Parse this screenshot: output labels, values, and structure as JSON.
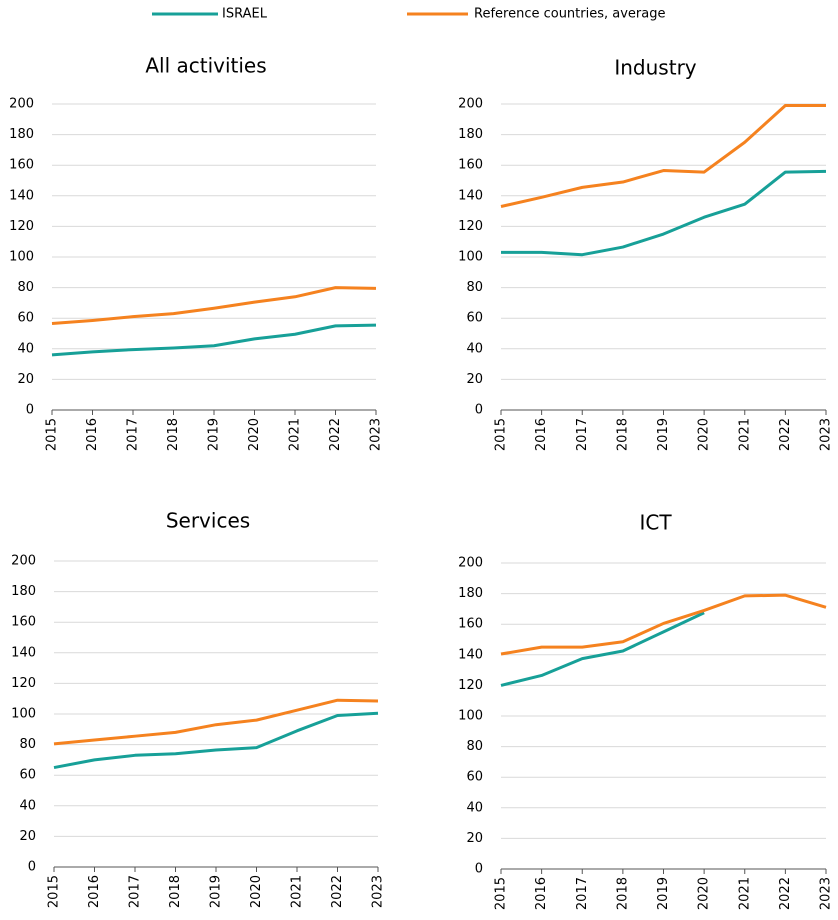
{
  "chart_data": [
    {
      "type": "line",
      "title": "All activities",
      "categories": [
        "2015",
        "2016",
        "2017",
        "2018",
        "2019",
        "2020",
        "2021",
        "2022",
        "2023"
      ],
      "series": [
        {
          "name": "ISRAEL",
          "color": "#17a098",
          "values": [
            36,
            38,
            39.5,
            40.5,
            42,
            46.5,
            49.5,
            55,
            55.5
          ]
        },
        {
          "name": "Reference countries, average",
          "color": "#f5821f",
          "values": [
            56.5,
            58.5,
            61,
            63,
            66.5,
            70.5,
            74,
            80,
            79.5
          ]
        }
      ],
      "ylim": [
        0,
        200
      ],
      "yticks": [
        0,
        20,
        40,
        60,
        80,
        100,
        120,
        140,
        160,
        180,
        200
      ],
      "grid": true
    },
    {
      "type": "line",
      "title": "Industry",
      "categories": [
        "2015",
        "2016",
        "2017",
        "2018",
        "2019",
        "2020",
        "2021",
        "2022",
        "2023"
      ],
      "series": [
        {
          "name": "ISRAEL",
          "color": "#17a098",
          "values": [
            103,
            103,
            101.5,
            106.5,
            115,
            126,
            134.5,
            155.5,
            156
          ]
        },
        {
          "name": "Reference countries, average",
          "color": "#f5821f",
          "values": [
            133,
            139,
            145.5,
            149,
            156.5,
            155.5,
            175,
            199,
            199
          ]
        }
      ],
      "ylim": [
        0,
        200
      ],
      "yticks": [
        0,
        20,
        40,
        60,
        80,
        100,
        120,
        140,
        160,
        180,
        200
      ],
      "grid": true
    },
    {
      "type": "line",
      "title": "Services",
      "categories": [
        "2015",
        "2016",
        "2017",
        "2018",
        "2019",
        "2020",
        "2021",
        "2022",
        "2023"
      ],
      "series": [
        {
          "name": "ISRAEL",
          "color": "#17a098",
          "values": [
            65,
            70,
            73,
            74,
            76.5,
            78,
            89,
            99,
            100.5
          ]
        },
        {
          "name": "Reference countries, average",
          "color": "#f5821f",
          "values": [
            80.5,
            83,
            85.5,
            88,
            93,
            96,
            102.5,
            109,
            108.5
          ]
        }
      ],
      "ylim": [
        0,
        200
      ],
      "yticks": [
        0,
        20,
        40,
        60,
        80,
        100,
        120,
        140,
        160,
        180,
        200
      ],
      "grid": true
    },
    {
      "type": "line",
      "title": "ICT",
      "categories": [
        "2015",
        "2016",
        "2017",
        "2018",
        "2019",
        "2020",
        "2021",
        "2022",
        "2023"
      ],
      "series": [
        {
          "name": "ISRAEL",
          "color": "#17a098",
          "values": [
            120,
            126.5,
            137.5,
            142.5,
            155,
            167.5,
            null,
            null,
            null
          ]
        },
        {
          "name": "Reference countries, average",
          "color": "#f5821f",
          "values": [
            140.5,
            145,
            145,
            148.5,
            160.5,
            169,
            178.5,
            179,
            171
          ]
        }
      ],
      "ylim": [
        0,
        200
      ],
      "yticks": [
        0,
        20,
        40,
        60,
        80,
        100,
        120,
        140,
        160,
        180,
        200
      ],
      "grid": true
    }
  ]
}
